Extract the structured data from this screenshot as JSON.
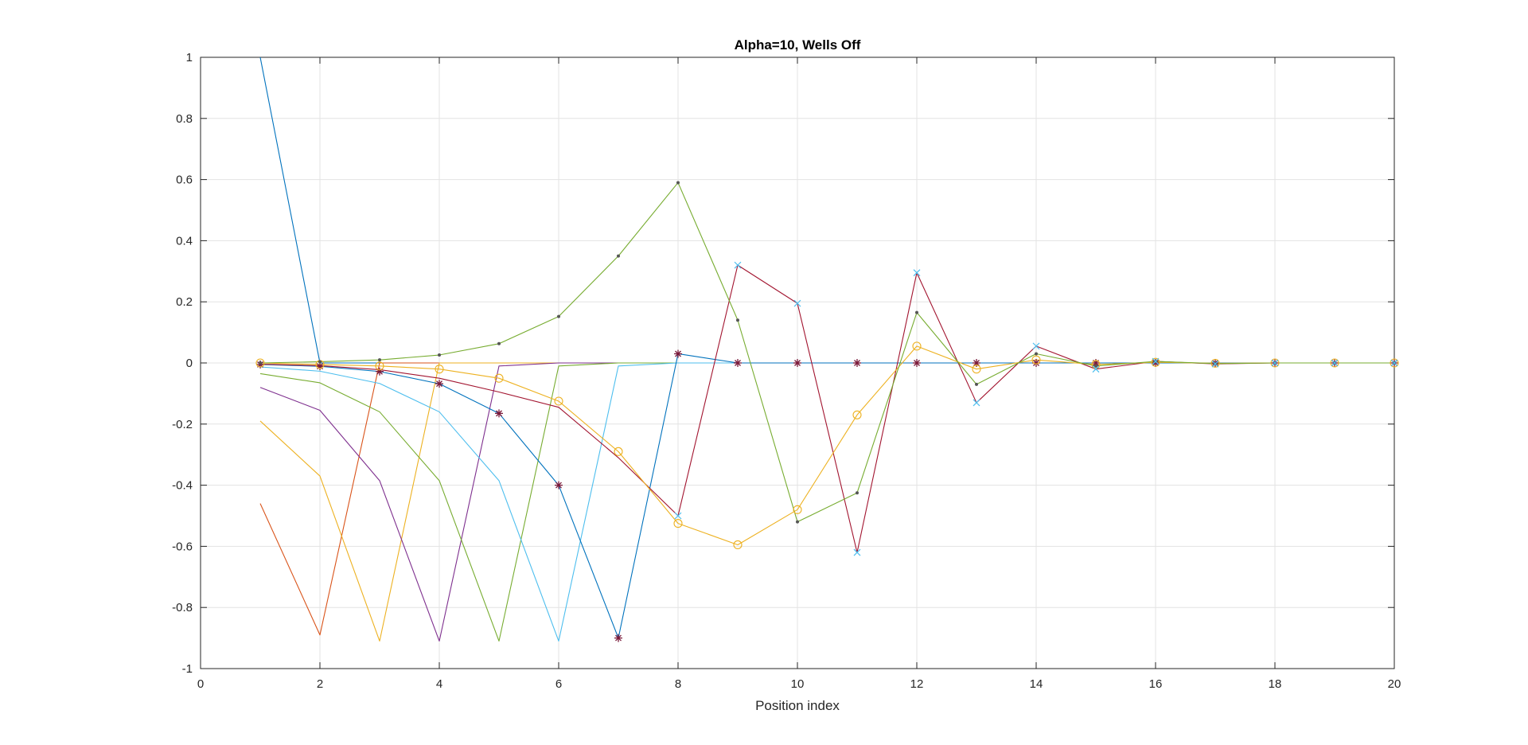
{
  "chart_data": {
    "type": "line",
    "title": "Alpha=10, Wells Off",
    "xlabel": "Position index",
    "ylabel": "",
    "xlim": [
      0,
      20
    ],
    "ylim": [
      -1,
      1
    ],
    "xticks": [
      "0",
      "2",
      "4",
      "6",
      "8",
      "10",
      "12",
      "14",
      "16",
      "18",
      "20"
    ],
    "yticks": [
      "-1",
      "-0.8",
      "-0.6",
      "-0.4",
      "-0.2",
      "0",
      "0.2",
      "0.4",
      "0.6",
      "0.8",
      "1"
    ],
    "grid": true,
    "legend": "none",
    "x": [
      1,
      2,
      3,
      4,
      5,
      6,
      7,
      8,
      9,
      10,
      11,
      12,
      13,
      14,
      15,
      16,
      17,
      18,
      19,
      20
    ],
    "series": [
      {
        "color": "#0072BD",
        "marker": "none",
        "values": [
          1.0,
          0.0,
          0.0,
          0.0,
          0.0,
          0.0,
          0.0,
          0.0,
          0.0,
          0.0,
          0.0,
          0.0,
          0.0,
          0.0,
          0.0,
          0.0,
          0.0,
          0.0,
          0.0,
          0.0
        ]
      },
      {
        "color": "#D95319",
        "marker": "none",
        "values": [
          -0.46,
          -0.89,
          0.0,
          0.0,
          0.0,
          0.0,
          0.0,
          0.0,
          0.0,
          0.0,
          0.0,
          0.0,
          0.0,
          0.0,
          0.0,
          0.0,
          0.0,
          0.0,
          0.0,
          0.0
        ]
      },
      {
        "color": "#EDB120",
        "marker": "none",
        "values": [
          -0.19,
          -0.37,
          -0.91,
          0.0,
          0.0,
          0.0,
          0.0,
          0.0,
          0.0,
          0.0,
          0.0,
          0.0,
          0.0,
          0.0,
          0.0,
          0.0,
          0.0,
          0.0,
          0.0,
          0.0
        ]
      },
      {
        "color": "#7E2F8E",
        "marker": "none",
        "values": [
          -0.08,
          -0.155,
          -0.385,
          -0.91,
          -0.01,
          0.0,
          0.0,
          0.0,
          0.0,
          0.0,
          0.0,
          0.0,
          0.0,
          0.0,
          0.0,
          0.0,
          0.0,
          0.0,
          0.0,
          0.0
        ]
      },
      {
        "color": "#77AC30",
        "marker": "none",
        "values": [
          -0.035,
          -0.065,
          -0.16,
          -0.385,
          -0.91,
          -0.01,
          0.0,
          0.0,
          0.0,
          0.0,
          0.0,
          0.0,
          0.0,
          0.0,
          0.0,
          0.0,
          0.0,
          0.0,
          0.0,
          0.0
        ]
      },
      {
        "color": "#4DBEEE",
        "marker": "none",
        "values": [
          -0.013,
          -0.027,
          -0.067,
          -0.16,
          -0.385,
          -0.91,
          -0.01,
          0.0,
          0.0,
          0.0,
          0.0,
          0.0,
          0.0,
          0.0,
          0.0,
          0.0,
          0.0,
          0.0,
          0.0,
          0.0
        ]
      },
      {
        "color": "#0072BD",
        "marker": "*",
        "values": [
          -0.005,
          -0.011,
          -0.028,
          -0.068,
          -0.165,
          -0.4,
          -0.9,
          0.03,
          0.0,
          0.0,
          0.0,
          0.0,
          0.0,
          0.0,
          0.0,
          0.0,
          0.0,
          0.0,
          0.0,
          0.0
        ]
      },
      {
        "color": "#A2142F",
        "marker": "none",
        "values": [
          -0.004,
          -0.009,
          -0.022,
          -0.05,
          -0.095,
          -0.145,
          -0.31,
          -0.5,
          0.32,
          0.195,
          -0.62,
          0.295,
          -0.13,
          0.055,
          -0.02,
          0.005,
          -0.003,
          0.0,
          0.0,
          0.0
        ]
      },
      {
        "color": "#EDB120",
        "marker": "o",
        "values": [
          0.0,
          -0.005,
          -0.01,
          -0.02,
          -0.05,
          -0.125,
          -0.29,
          -0.525,
          -0.595,
          -0.48,
          -0.17,
          0.055,
          -0.02,
          0.01,
          -0.005,
          0.002,
          -0.001,
          0.0,
          0.0,
          0.0
        ]
      },
      {
        "color": "#77AC30",
        "marker": ".",
        "values": [
          0.0,
          0.004,
          0.01,
          0.026,
          0.063,
          0.152,
          0.35,
          0.59,
          0.14,
          -0.52,
          -0.425,
          0.165,
          -0.07,
          0.03,
          -0.01,
          0.005,
          -0.002,
          0.0,
          0.0,
          0.0
        ]
      },
      {
        "color": "#4DBEEE",
        "marker": "x",
        "values": [
          null,
          null,
          null,
          null,
          null,
          null,
          null,
          null,
          null,
          null,
          null,
          null,
          null,
          null,
          null,
          null,
          null,
          null,
          null,
          null
        ]
      }
    ]
  }
}
